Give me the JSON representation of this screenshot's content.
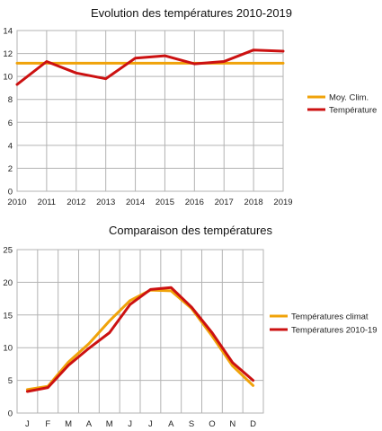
{
  "chart_data": [
    {
      "type": "line",
      "title": "Evolution des températures 2010-2019",
      "xlabel": "",
      "ylabel": "",
      "categories": [
        "2010",
        "2011",
        "2012",
        "2013",
        "2014",
        "2015",
        "2016",
        "2017",
        "2018",
        "2019"
      ],
      "ylim": [
        0,
        14
      ],
      "yticks": [
        0,
        2,
        4,
        6,
        8,
        10,
        12,
        14
      ],
      "grid": true,
      "legend_position": "right",
      "series": [
        {
          "name": "Moy. Clim.",
          "color": "#f0a30a",
          "values": [
            11.15,
            11.15,
            11.15,
            11.15,
            11.15,
            11.15,
            11.15,
            11.15,
            11.15,
            11.15
          ]
        },
        {
          "name": "Température",
          "color": "#cc1111",
          "values": [
            9.3,
            11.3,
            10.3,
            9.8,
            11.6,
            11.8,
            11.1,
            11.3,
            12.3,
            12.2
          ]
        }
      ]
    },
    {
      "type": "line",
      "title": "Comparaison des températures",
      "xlabel": "",
      "ylabel": "",
      "categories": [
        "J",
        "F",
        "M",
        "A",
        "M",
        "J",
        "J",
        "A",
        "S",
        "O",
        "N",
        "D"
      ],
      "ylim": [
        0,
        25
      ],
      "yticks": [
        0,
        5,
        10,
        15,
        20,
        25
      ],
      "grid": true,
      "legend_position": "right",
      "series": [
        {
          "name": "Températures climat",
          "color": "#f0a30a",
          "values": [
            3.6,
            4.1,
            7.8,
            10.6,
            14.1,
            17.2,
            18.8,
            18.7,
            16.0,
            11.8,
            7.2,
            4.2
          ]
        },
        {
          "name": "Températures 2010-19",
          "color": "#cc1111",
          "values": [
            3.3,
            3.9,
            7.3,
            9.9,
            12.3,
            16.6,
            18.9,
            19.2,
            16.2,
            12.3,
            7.7,
            5.0
          ]
        }
      ]
    }
  ]
}
